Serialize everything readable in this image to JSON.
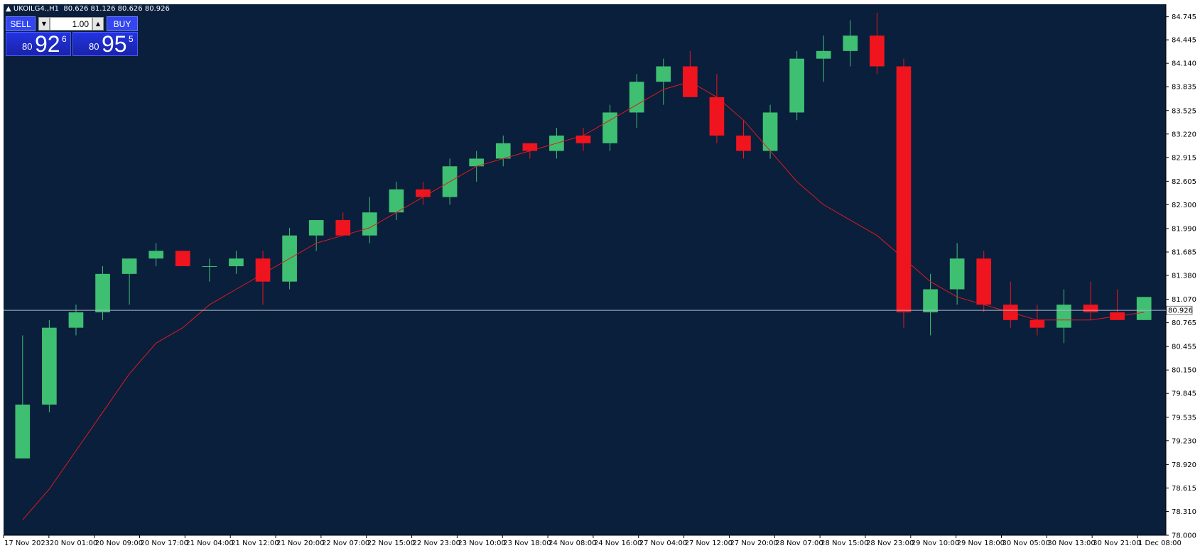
{
  "header": {
    "arrow": "▲",
    "symbol_timeframe": "UKOILG4.,H1",
    "ohlc": "80.626 81.126 80.626 80.926"
  },
  "trade_panel": {
    "sell_label": "SELL",
    "buy_label": "BUY",
    "lot": "1.00",
    "sell_small": "80",
    "sell_big": "92",
    "sell_sup": "6",
    "buy_small": "80",
    "buy_big": "95",
    "buy_sup": "5",
    "down_icon": "triangle-down",
    "up_icon": "triangle-up"
  },
  "colors": {
    "background": "#0a1f3c",
    "bull": "#3fbf72",
    "bear": "#f0141e",
    "ma": "#e0191e",
    "bid_line": "#a9b9c7"
  },
  "chart_data": {
    "type": "candlestick",
    "symbol": "UKOILG4.",
    "timeframe": "H1",
    "ylim": [
      78.0,
      84.908
    ],
    "y_ticks": [
      "84.745",
      "84.445",
      "84.140",
      "83.835",
      "83.525",
      "83.220",
      "82.915",
      "82.605",
      "82.300",
      "81.990",
      "81.685",
      "81.380",
      "81.070",
      "80.765",
      "80.455",
      "80.150",
      "79.845",
      "79.535",
      "79.230",
      "78.920",
      "78.615",
      "78.310",
      "78.000"
    ],
    "x_ticks": [
      "17 Nov 2023",
      "20 Nov 01:00",
      "20 Nov 09:00",
      "20 Nov 17:00",
      "21 Nov 04:00",
      "21 Nov 12:00",
      "21 Nov 20:00",
      "22 Nov 07:00",
      "22 Nov 15:00",
      "22 Nov 23:00",
      "23 Nov 10:00",
      "23 Nov 18:00",
      "24 Nov 08:00",
      "24 Nov 16:00",
      "27 Nov 04:00",
      "27 Nov 12:00",
      "27 Nov 20:00",
      "28 Nov 07:00",
      "28 Nov 15:00",
      "28 Nov 23:00",
      "29 Nov 10:00",
      "29 Nov 18:00",
      "30 Nov 05:00",
      "30 Nov 13:00",
      "30 Nov 21:00",
      "1 Dec 08:00"
    ],
    "current_price": "80.926",
    "candles": [
      [
        79.0,
        80.6,
        79.0,
        79.7
      ],
      [
        79.7,
        80.8,
        79.6,
        80.7
      ],
      [
        80.7,
        81.0,
        80.6,
        80.9
      ],
      [
        80.9,
        81.5,
        80.8,
        81.4
      ],
      [
        81.4,
        81.6,
        81.0,
        81.6
      ],
      [
        81.6,
        81.8,
        81.5,
        81.7
      ],
      [
        81.7,
        81.7,
        81.5,
        81.5
      ],
      [
        81.5,
        81.6,
        81.3,
        81.5
      ],
      [
        81.5,
        81.7,
        81.4,
        81.6
      ],
      [
        81.6,
        81.7,
        81.0,
        81.3
      ],
      [
        81.3,
        82.0,
        81.2,
        81.9
      ],
      [
        81.9,
        82.1,
        81.7,
        82.1
      ],
      [
        82.1,
        82.2,
        81.9,
        81.9
      ],
      [
        81.9,
        82.4,
        81.8,
        82.2
      ],
      [
        82.2,
        82.6,
        82.1,
        82.5
      ],
      [
        82.5,
        82.6,
        82.3,
        82.4
      ],
      [
        82.4,
        82.9,
        82.3,
        82.8
      ],
      [
        82.8,
        83.0,
        82.6,
        82.9
      ],
      [
        82.9,
        83.2,
        82.8,
        83.1
      ],
      [
        83.1,
        83.1,
        82.9,
        83.0
      ],
      [
        83.0,
        83.3,
        82.9,
        83.2
      ],
      [
        83.2,
        83.3,
        83.0,
        83.1
      ],
      [
        83.1,
        83.6,
        83.0,
        83.5
      ],
      [
        83.5,
        84.0,
        83.3,
        83.9
      ],
      [
        83.9,
        84.2,
        83.6,
        84.1
      ],
      [
        84.1,
        84.3,
        83.7,
        83.7
      ],
      [
        83.7,
        84.0,
        83.1,
        83.2
      ],
      [
        83.2,
        83.4,
        82.9,
        83.0
      ],
      [
        83.0,
        83.6,
        82.9,
        83.5
      ],
      [
        83.5,
        84.3,
        83.4,
        84.2
      ],
      [
        84.2,
        84.5,
        83.9,
        84.3
      ],
      [
        84.3,
        84.7,
        84.1,
        84.5
      ],
      [
        84.5,
        84.8,
        84.0,
        84.1
      ],
      [
        84.1,
        84.2,
        80.7,
        80.9
      ],
      [
        80.9,
        81.4,
        80.6,
        81.2
      ],
      [
        81.2,
        81.8,
        81.0,
        81.6
      ],
      [
        81.6,
        81.7,
        80.9,
        81.0
      ],
      [
        81.0,
        81.3,
        80.7,
        80.8
      ],
      [
        80.8,
        81.0,
        80.6,
        80.7
      ],
      [
        80.7,
        81.2,
        80.5,
        81.0
      ],
      [
        81.0,
        81.3,
        80.8,
        80.9
      ],
      [
        80.9,
        81.2,
        80.8,
        80.8
      ],
      [
        80.8,
        81.1,
        80.8,
        81.1
      ]
    ],
    "ma_line": [
      78.2,
      78.6,
      79.1,
      79.6,
      80.1,
      80.5,
      80.7,
      81.0,
      81.2,
      81.4,
      81.6,
      81.8,
      81.9,
      82.0,
      82.2,
      82.4,
      82.6,
      82.8,
      82.9,
      83.0,
      83.1,
      83.2,
      83.4,
      83.6,
      83.8,
      83.9,
      83.7,
      83.4,
      83.0,
      82.6,
      82.3,
      82.1,
      81.9,
      81.6,
      81.3,
      81.1,
      81.0,
      80.9,
      80.8,
      80.8,
      80.8,
      80.85,
      80.9
    ]
  }
}
